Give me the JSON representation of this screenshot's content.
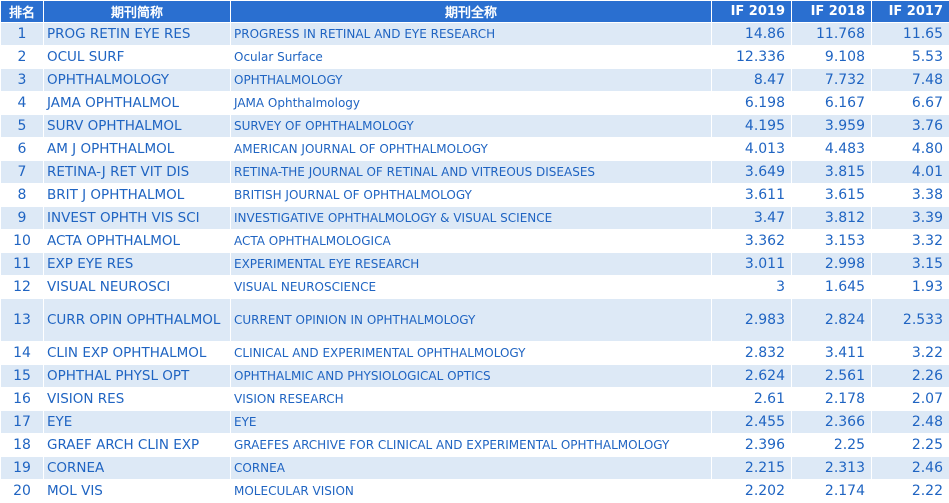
{
  "headers": {
    "rank": "排名",
    "abbr": "期刊简称",
    "full": "期刊全称",
    "if2019": "IF 2019",
    "if2018": "IF 2018",
    "if2017": "IF 2017"
  },
  "rows": [
    {
      "rank": "1",
      "abbr": "PROG RETIN EYE RES",
      "full": "PROGRESS IN RETINAL AND EYE RESEARCH",
      "if2019": "14.86",
      "if2018": "11.768",
      "if2017": "11.65"
    },
    {
      "rank": "2",
      "abbr": "OCUL SURF",
      "full": "Ocular Surface",
      "if2019": "12.336",
      "if2018": "9.108",
      "if2017": "5.53"
    },
    {
      "rank": "3",
      "abbr": "OPHTHALMOLOGY",
      "full": "OPHTHALMOLOGY",
      "if2019": "8.47",
      "if2018": "7.732",
      "if2017": "7.48"
    },
    {
      "rank": "4",
      "abbr": "JAMA OPHTHALMOL",
      "full": "JAMA Ophthalmology",
      "if2019": "6.198",
      "if2018": "6.167",
      "if2017": "6.67"
    },
    {
      "rank": "5",
      "abbr": "SURV OPHTHALMOL",
      "full": "SURVEY OF OPHTHALMOLOGY",
      "if2019": "4.195",
      "if2018": "3.959",
      "if2017": "3.76"
    },
    {
      "rank": "6",
      "abbr": "AM J OPHTHALMOL",
      "full": "AMERICAN JOURNAL OF OPHTHALMOLOGY",
      "if2019": "4.013",
      "if2018": "4.483",
      "if2017": "4.80"
    },
    {
      "rank": "7",
      "abbr": "RETINA-J RET VIT DIS",
      "full": "RETINA-THE JOURNAL OF RETINAL AND VITREOUS DISEASES",
      "if2019": "3.649",
      "if2018": "3.815",
      "if2017": "4.01"
    },
    {
      "rank": "8",
      "abbr": "BRIT J OPHTHALMOL",
      "full": "BRITISH JOURNAL OF OPHTHALMOLOGY",
      "if2019": "3.611",
      "if2018": "3.615",
      "if2017": "3.38"
    },
    {
      "rank": "9",
      "abbr": "INVEST OPHTH VIS SCI",
      "full": "INVESTIGATIVE OPHTHALMOLOGY & VISUAL SCIENCE",
      "if2019": "3.47",
      "if2018": "3.812",
      "if2017": "3.39"
    },
    {
      "rank": "10",
      "abbr": "ACTA OPHTHALMOL",
      "full": "ACTA OPHTHALMOLOGICA",
      "if2019": "3.362",
      "if2018": "3.153",
      "if2017": "3.32"
    },
    {
      "rank": "11",
      "abbr": "EXP EYE RES",
      "full": "EXPERIMENTAL EYE RESEARCH",
      "if2019": "3.011",
      "if2018": "2.998",
      "if2017": "3.15"
    },
    {
      "rank": "12",
      "abbr": "VISUAL NEUROSCI",
      "full": "VISUAL NEUROSCIENCE",
      "if2019": "3",
      "if2018": "1.645",
      "if2017": "1.93"
    },
    {
      "rank": "13",
      "abbr": "CURR OPIN OPHTHALMOL",
      "full": "CURRENT OPINION IN OPHTHALMOLOGY",
      "if2019": "2.983",
      "if2018": "2.824",
      "if2017": "2.533"
    },
    {
      "rank": "14",
      "abbr": "CLIN EXP OPHTHALMOL",
      "full": "CLINICAL AND EXPERIMENTAL OPHTHALMOLOGY",
      "if2019": "2.832",
      "if2018": "3.411",
      "if2017": "3.22"
    },
    {
      "rank": "15",
      "abbr": "OPHTHAL PHYSL OPT",
      "full": "OPHTHALMIC AND PHYSIOLOGICAL OPTICS",
      "if2019": "2.624",
      "if2018": "2.561",
      "if2017": "2.26"
    },
    {
      "rank": "16",
      "abbr": "VISION RES",
      "full": "VISION RESEARCH",
      "if2019": "2.61",
      "if2018": "2.178",
      "if2017": "2.07"
    },
    {
      "rank": "17",
      "abbr": "EYE",
      "full": "EYE",
      "if2019": "2.455",
      "if2018": "2.366",
      "if2017": "2.48"
    },
    {
      "rank": "18",
      "abbr": "GRAEF ARCH CLIN EXP",
      "full": "GRAEFES ARCHIVE FOR CLINICAL AND EXPERIMENTAL OPHTHALMOLOGY",
      "if2019": "2.396",
      "if2018": "2.25",
      "if2017": "2.25"
    },
    {
      "rank": "19",
      "abbr": "CORNEA",
      "full": "CORNEA",
      "if2019": "2.215",
      "if2018": "2.313",
      "if2017": "2.46"
    },
    {
      "rank": "20",
      "abbr": "MOL VIS",
      "full": "MOLECULAR VISION",
      "if2019": "2.202",
      "if2018": "2.174",
      "if2017": "2.22"
    }
  ]
}
